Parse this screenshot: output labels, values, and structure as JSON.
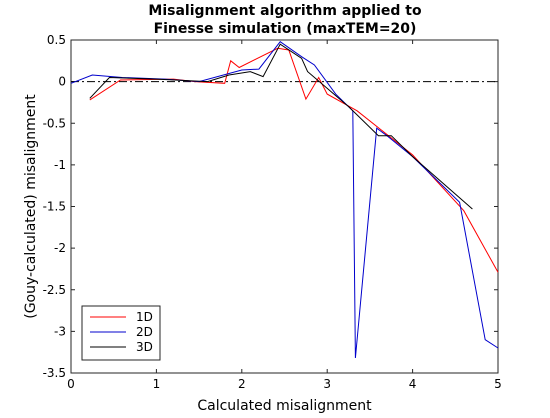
{
  "chart_data": {
    "type": "line",
    "title": [
      "Misalignment algorithm applied to",
      "Finesse simulation (maxTEM=20)"
    ],
    "xlabel": "Calculated misalignment",
    "ylabel": "(Gouy-calculated) misalignment",
    "xlim": [
      0,
      5
    ],
    "ylim": [
      -3.5,
      0.5
    ],
    "xticks": [
      0,
      1,
      2,
      3,
      4,
      5
    ],
    "yticks": [
      0.5,
      0,
      -0.5,
      -1,
      -1.5,
      -2,
      -2.5,
      -3,
      -3.5
    ],
    "xtick_labels": [
      "0",
      "1",
      "2",
      "3",
      "4",
      "5"
    ],
    "ytick_labels": [
      "0.5",
      "0",
      "-0.5",
      "-1",
      "-1.5",
      "-2",
      "-2.5",
      "-3",
      "-3.5"
    ],
    "grid": false,
    "legend_position": "bottom-left",
    "reference_line": {
      "y": 0,
      "style": "dash-dot",
      "color": "#000000"
    },
    "series": [
      {
        "name": "1D",
        "color": "#ff0000",
        "points": [
          [
            0.22,
            -0.22
          ],
          [
            0.58,
            0.02
          ],
          [
            1.2,
            0.03
          ],
          [
            1.45,
            0.0
          ],
          [
            1.8,
            -0.02
          ],
          [
            1.87,
            0.25
          ],
          [
            1.97,
            0.17
          ],
          [
            2.42,
            0.4
          ],
          [
            2.55,
            0.38
          ],
          [
            2.75,
            -0.21
          ],
          [
            2.9,
            0.05
          ],
          [
            3.0,
            -0.15
          ],
          [
            3.35,
            -0.35
          ],
          [
            4.0,
            -0.88
          ],
          [
            4.6,
            -1.55
          ],
          [
            5.0,
            -2.29
          ]
        ]
      },
      {
        "name": "2D",
        "color": "#0000cc",
        "points": [
          [
            0.0,
            -0.02
          ],
          [
            0.25,
            0.08
          ],
          [
            0.6,
            0.05
          ],
          [
            1.1,
            0.03
          ],
          [
            1.5,
            0.0
          ],
          [
            2.0,
            0.14
          ],
          [
            2.2,
            0.15
          ],
          [
            2.45,
            0.48
          ],
          [
            2.7,
            0.3
          ],
          [
            2.85,
            0.2
          ],
          [
            3.1,
            -0.15
          ],
          [
            3.3,
            -0.35
          ],
          [
            3.33,
            -3.32
          ],
          [
            3.58,
            -0.56
          ],
          [
            3.7,
            -0.65
          ],
          [
            4.0,
            -0.9
          ],
          [
            4.55,
            -1.45
          ],
          [
            4.85,
            -3.1
          ],
          [
            5.0,
            -3.2
          ]
        ]
      },
      {
        "name": "3D",
        "color": "#000000",
        "points": [
          [
            0.22,
            -0.2
          ],
          [
            0.45,
            0.05
          ],
          [
            1.0,
            0.03
          ],
          [
            1.6,
            0.0
          ],
          [
            1.85,
            0.08
          ],
          [
            2.1,
            0.12
          ],
          [
            2.25,
            0.06
          ],
          [
            2.45,
            0.45
          ],
          [
            2.7,
            0.28
          ],
          [
            2.77,
            0.12
          ],
          [
            3.25,
            -0.3
          ],
          [
            3.6,
            -0.65
          ],
          [
            3.75,
            -0.65
          ],
          [
            4.0,
            -0.9
          ],
          [
            4.7,
            -1.53
          ]
        ]
      }
    ]
  }
}
